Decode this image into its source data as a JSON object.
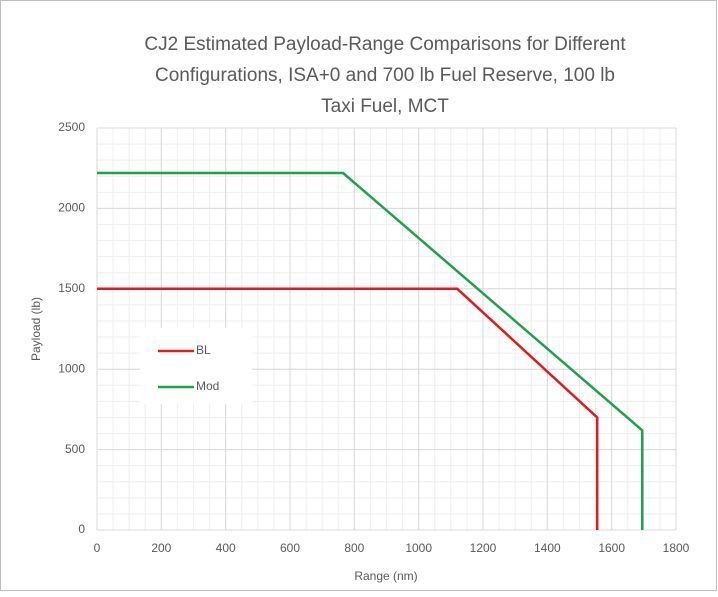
{
  "chart_data": {
    "type": "line",
    "title": [
      "CJ2 Estimated Payload-Range Comparisons for Different",
      "Configurations, ISA+0 and 700 lb Fuel Reserve, 100 lb",
      "Taxi Fuel, MCT"
    ],
    "x_label": "Range (nm)",
    "y_label": "Payload (lb)",
    "series": [
      {
        "name": "BL",
        "color": "#e2191f",
        "x": [
          0,
          1120,
          1555,
          1555
        ],
        "values": [
          1500,
          1500,
          700,
          0
        ]
      },
      {
        "name": "Mod",
        "color": "#1ca24b",
        "x": [
          0,
          765,
          1695,
          1695
        ],
        "values": [
          2220,
          2220,
          620,
          0
        ]
      }
    ],
    "xlim": [
      0,
      1800
    ],
    "xticks": [
      0,
      200,
      400,
      600,
      800,
      1000,
      1200,
      1400,
      1600,
      1800
    ],
    "ylim": [
      0,
      2500
    ],
    "yticks": [
      0,
      500,
      1000,
      1500,
      2000,
      2500
    ],
    "grid": true,
    "minor_grid_step": [
      50,
      100
    ],
    "legend": "left"
  }
}
